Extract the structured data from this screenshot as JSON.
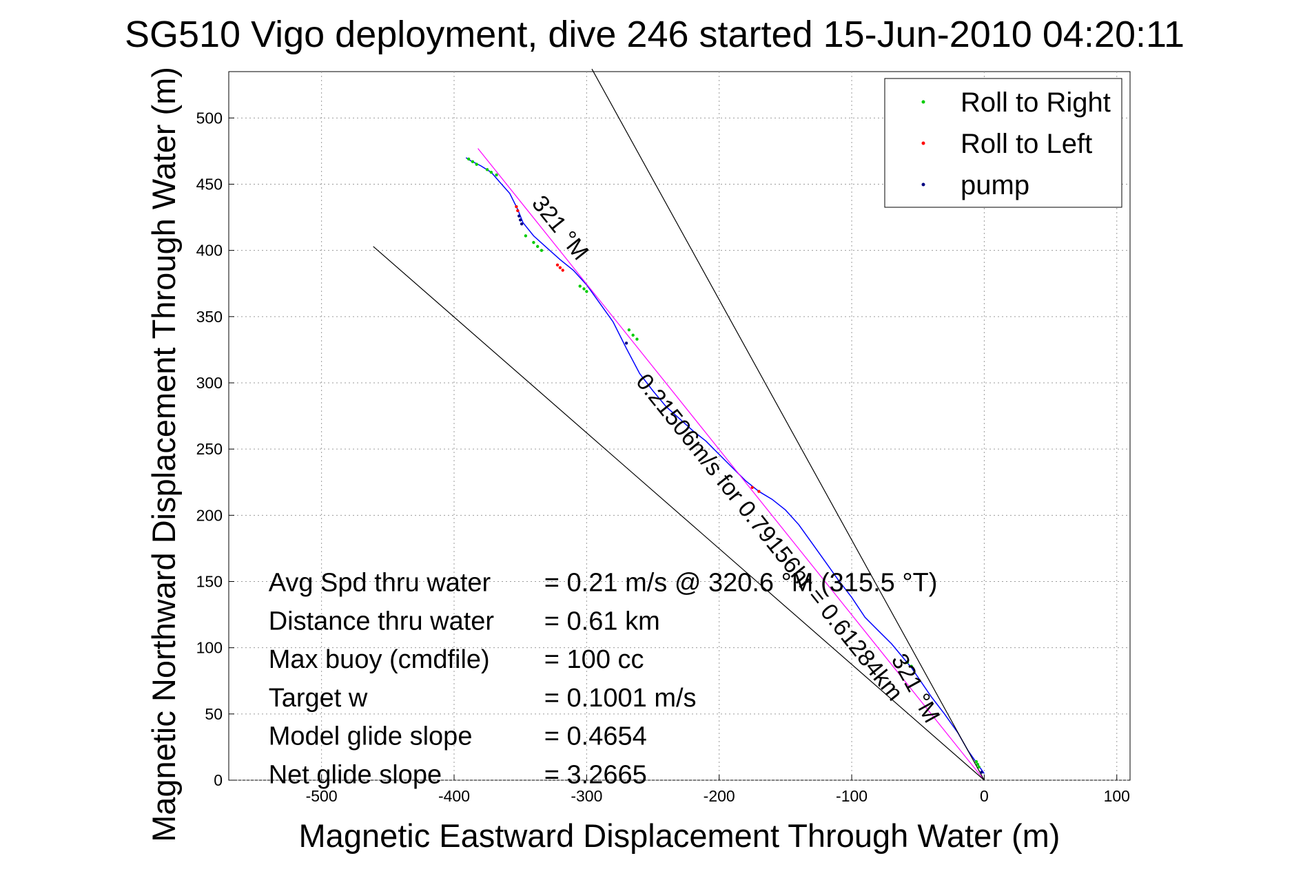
{
  "chart_data": {
    "type": "line",
    "title": "SG510 Vigo deployment, dive 246 started 15-Jun-2010 04:20:11",
    "xlabel": "Magnetic Eastward Displacement Through Water (m)",
    "ylabel": "Magnetic Northward Displacement Through Water (m)",
    "xlim": [
      -570,
      110
    ],
    "ylim": [
      0,
      535
    ],
    "xticks": [
      -500,
      -400,
      -300,
      -200,
      -100,
      0,
      100
    ],
    "yticks": [
      0,
      50,
      100,
      150,
      200,
      250,
      300,
      350,
      400,
      450,
      500
    ],
    "grid": true,
    "legend_position": "top-right",
    "legend": [
      {
        "label": "Roll to Right",
        "color": "#00cc00"
      },
      {
        "label": "Roll to Left",
        "color": "#ff0000"
      },
      {
        "label": "pump",
        "color": "#000080"
      }
    ],
    "series": [
      {
        "role": "track",
        "color": "#0000ff",
        "x": [
          0,
          -5,
          -12,
          -20,
          -30,
          -40,
          -55,
          -70,
          -80,
          -90,
          -100,
          -110,
          -120,
          -130,
          -140,
          -150,
          -160,
          -170,
          -180,
          -190,
          -200,
          -210,
          -220,
          -230,
          -240,
          -250,
          -260,
          -270,
          -280,
          -290,
          -300,
          -310,
          -320,
          -330,
          -340,
          -348,
          -352,
          -358,
          -365,
          -372,
          -380,
          -388,
          -391
        ],
        "y": [
          5,
          12,
          22,
          36,
          50,
          63,
          85,
          103,
          113,
          123,
          138,
          151,
          165,
          179,
          193,
          204,
          212,
          218,
          226,
          236,
          246,
          256,
          264,
          273,
          282,
          294,
          307,
          326,
          346,
          360,
          374,
          385,
          393,
          402,
          411,
          421,
          431,
          443,
          451,
          459,
          464,
          468,
          470
        ]
      },
      {
        "role": "net-heading",
        "color": "#ff00ff",
        "x": [
          0,
          -382
        ],
        "y": [
          0,
          477
        ]
      },
      {
        "role": "heading-bound-1",
        "color": "#000000",
        "x": [
          0,
          -296
        ],
        "y": [
          0,
          537
        ]
      },
      {
        "role": "heading-bound-2",
        "color": "#000000",
        "x": [
          0,
          -461
        ],
        "y": [
          0,
          403
        ]
      }
    ],
    "markers": {
      "roll_right": [
        [
          -4,
          10
        ],
        [
          -5,
          12
        ],
        [
          -6,
          14
        ],
        [
          -55,
          86
        ],
        [
          -58,
          89
        ],
        [
          -262,
          333
        ],
        [
          -265,
          336
        ],
        [
          -268,
          340
        ],
        [
          -300,
          369
        ],
        [
          -302,
          371
        ],
        [
          -305,
          373
        ],
        [
          -334,
          400
        ],
        [
          -337,
          403
        ],
        [
          -340,
          406
        ],
        [
          -346,
          411
        ],
        [
          -368,
          457
        ],
        [
          -372,
          459
        ],
        [
          -375,
          461
        ],
        [
          -383,
          465
        ],
        [
          -386,
          467
        ],
        [
          -389,
          469
        ]
      ],
      "roll_left": [
        [
          -170,
          218
        ],
        [
          -175,
          221
        ],
        [
          -318,
          385
        ],
        [
          -320,
          387
        ],
        [
          -322,
          389
        ],
        [
          -352,
          430
        ],
        [
          -353,
          433
        ]
      ],
      "pump": [
        [
          -2,
          6
        ],
        [
          -349,
          420
        ],
        [
          -350,
          423
        ],
        [
          -351,
          426
        ],
        [
          -270,
          330
        ]
      ]
    },
    "annotations": {
      "heading_1": "321 °M",
      "heading_2": "321 °M",
      "speed_distance": "0.21506m/s for 0.79156hr = 0.61284km"
    },
    "stats": [
      {
        "label": "Avg Spd thru water",
        "value": "=  0.21 m/s @ 320.6 °M (315.5 °T)"
      },
      {
        "label": "Distance thru water",
        "value": "=  0.61 km"
      },
      {
        "label": "Max buoy (cmdfile)",
        "value": "= 100 cc"
      },
      {
        "label": "Target w",
        "value": "= 0.1001 m/s"
      },
      {
        "label": "Model glide slope",
        "value": "= 0.4654"
      },
      {
        "label": "Net glide slope",
        "value": "= 3.2665"
      }
    ]
  }
}
